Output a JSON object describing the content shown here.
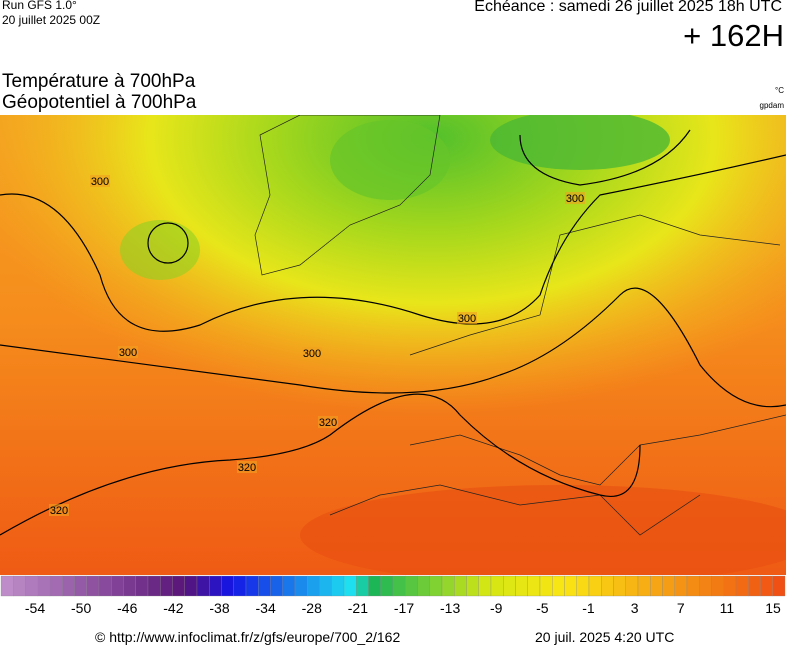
{
  "header": {
    "run": "Run GFS 1.0°",
    "run_date": "20 juillet 2025 00Z",
    "valid": "Echéance : samedi 26 juillet 2025 18h UTC",
    "lead": "+ 162H"
  },
  "title": {
    "line1": "Température à 700hPa",
    "line2": "Géopotentiel à 700hPa",
    "unit1": "°C",
    "unit2": "gpdam"
  },
  "contour_labels": [
    "300",
    "300",
    "300",
    "300",
    "300",
    "320",
    "320",
    "320"
  ],
  "colorbar_ticks": [
    -54,
    -50,
    -46,
    -42,
    -38,
    -34,
    -28,
    -21,
    -17,
    -13,
    -9,
    -5,
    -1,
    3,
    7,
    11,
    15
  ],
  "footer": {
    "url": "© http://www.infoclimat.fr/z/gfs/europe/700_2/162",
    "date": "20 juil. 2025  4:20 UTC"
  }
}
